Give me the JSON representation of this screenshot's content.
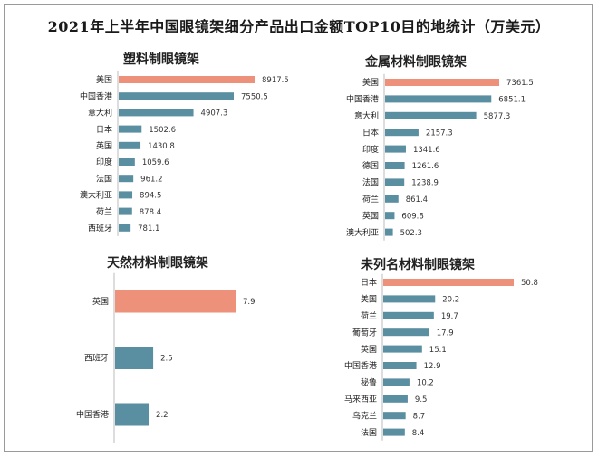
{
  "title": "2021年上半年中国眼镜架细分产品出口金额TOP10目的地统计（万美元）",
  "colors": {
    "highlight": "#EE917A",
    "bar": "#5A8EA1"
  },
  "chart_data": [
    {
      "type": "bar",
      "orientation": "horizontal",
      "title": "塑料制眼镜架",
      "categories": [
        "美国",
        "中国香港",
        "意大利",
        "日本",
        "英国",
        "印度",
        "法国",
        "澳大利亚",
        "荷兰",
        "西班牙"
      ],
      "values": [
        8917.5,
        7550.5,
        4907.3,
        1502.6,
        1430.8,
        1059.6,
        961.2,
        894.5,
        878.4,
        781.1
      ],
      "value_labels": [
        "8917.5",
        "7550.5",
        "4907.3",
        "1502.6",
        "1430.8",
        "1059.6",
        "961.2",
        "894.5",
        "878.4",
        "781.1"
      ]
    },
    {
      "type": "bar",
      "orientation": "horizontal",
      "title": "金属材料制眼镜架",
      "categories": [
        "美国",
        "中国香港",
        "意大利",
        "日本",
        "印度",
        "德国",
        "法国",
        "荷兰",
        "英国",
        "澳大利亚"
      ],
      "values": [
        7361.5,
        6851.1,
        5877.3,
        2157.3,
        1341.6,
        1261.6,
        1238.9,
        861.4,
        609.8,
        502.3
      ],
      "value_labels": [
        "7361.5",
        "6851.1",
        "5877.3",
        "2157.3",
        "1341.6",
        "1261.6",
        "1238.9",
        "861.4",
        "609.8",
        "502.3"
      ]
    },
    {
      "type": "bar",
      "orientation": "horizontal",
      "title": "天然材料制眼镜架",
      "categories": [
        "英国",
        "西班牙",
        "中国香港"
      ],
      "values": [
        7.9,
        2.5,
        2.2
      ],
      "value_labels": [
        "7.9",
        "2.5",
        "2.2"
      ]
    },
    {
      "type": "bar",
      "orientation": "horizontal",
      "title": "未列名材料制眼镜架",
      "categories": [
        "日本",
        "美国",
        "荷兰",
        "葡萄牙",
        "英国",
        "中国香港",
        "秘鲁",
        "马来西亚",
        "乌克兰",
        "法国"
      ],
      "values": [
        50.8,
        20.2,
        19.7,
        17.9,
        15.1,
        12.9,
        10.2,
        9.5,
        8.7,
        8.4
      ],
      "value_labels": [
        "50.8",
        "20.2",
        "19.7",
        "17.9",
        "15.1",
        "12.9",
        "10.2",
        "9.5",
        "8.7",
        "8.4"
      ]
    }
  ]
}
